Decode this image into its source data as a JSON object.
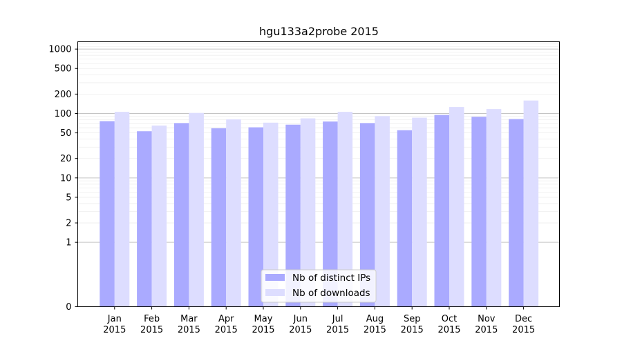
{
  "chart_data": {
    "type": "bar",
    "title": "hgu133a2probe 2015",
    "xlabel": "",
    "ylabel": "",
    "yscale": "symlog",
    "ylim": [
      0,
      1300
    ],
    "yticks": [
      {
        "value": 0,
        "label": "0"
      },
      {
        "value": 1,
        "label": "1"
      },
      {
        "value": 2,
        "label": "2"
      },
      {
        "value": 5,
        "label": "5"
      },
      {
        "value": 10,
        "label": "10"
      },
      {
        "value": 20,
        "label": "20"
      },
      {
        "value": 50,
        "label": "50"
      },
      {
        "value": 100,
        "label": "100"
      },
      {
        "value": 200,
        "label": "200"
      },
      {
        "value": 500,
        "label": "500"
      },
      {
        "value": 1000,
        "label": "1000"
      }
    ],
    "categories": [
      [
        "Jan",
        "2015"
      ],
      [
        "Feb",
        "2015"
      ],
      [
        "Mar",
        "2015"
      ],
      [
        "Apr",
        "2015"
      ],
      [
        "May",
        "2015"
      ],
      [
        "Jun",
        "2015"
      ],
      [
        "Jul",
        "2015"
      ],
      [
        "Aug",
        "2015"
      ],
      [
        "Sep",
        "2015"
      ],
      [
        "Oct",
        "2015"
      ],
      [
        "Nov",
        "2015"
      ],
      [
        "Dec",
        "2015"
      ]
    ],
    "series": [
      {
        "name": "Nb of distinct IPs",
        "color": "#aaaaff",
        "values": [
          76,
          53,
          71,
          59,
          61,
          67,
          75,
          71,
          55,
          95,
          89,
          82
        ]
      },
      {
        "name": "Nb of downloads",
        "color": "#ddddff",
        "values": [
          106,
          65,
          102,
          81,
          72,
          84,
          106,
          91,
          86,
          126,
          117,
          159
        ]
      }
    ],
    "grid": true,
    "legend_position": "bottom-center"
  }
}
